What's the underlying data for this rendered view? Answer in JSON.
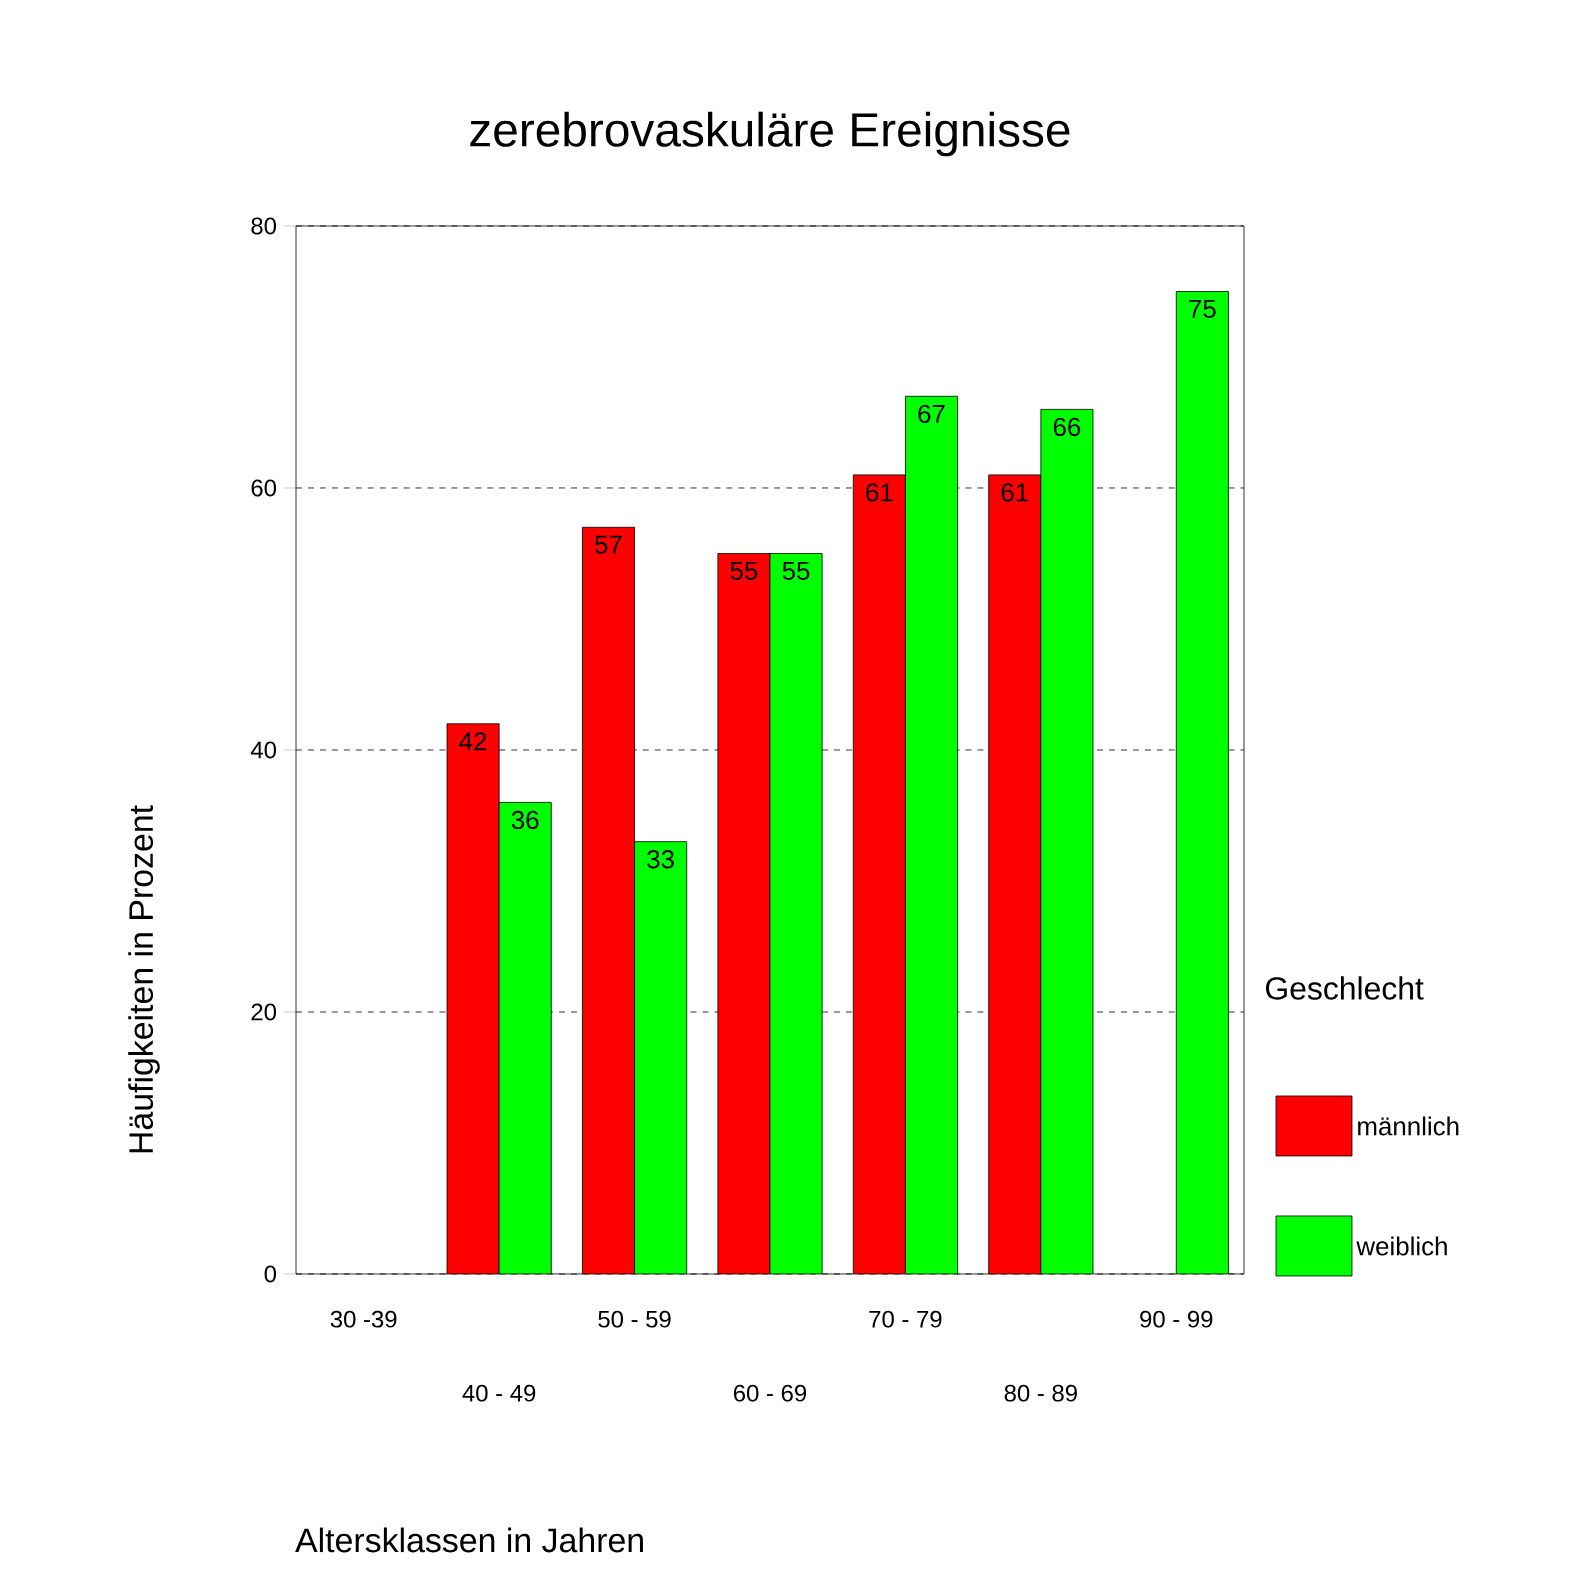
{
  "chart_data": {
    "type": "bar",
    "title": "zerebrovaskuläre Ereignisse",
    "xlabel": "Altersklassen in Jahren",
    "ylabel": "Häufigkeiten in Prozent",
    "legend_title": "Geschlecht",
    "categories": [
      "30 -39",
      "40 - 49",
      "50 - 59",
      "60 - 69",
      "70 - 79",
      "80 - 89",
      "90 - 99"
    ],
    "series": [
      {
        "name": "männlich",
        "color": "#ff0000",
        "values": [
          null,
          42,
          57,
          55,
          61,
          61,
          null
        ]
      },
      {
        "name": "weiblich",
        "color": "#00ff00",
        "values": [
          null,
          36,
          33,
          55,
          67,
          66,
          75
        ]
      }
    ],
    "ylim": [
      0,
      80
    ],
    "yticks": [
      0,
      20,
      40,
      60,
      80
    ],
    "grid": "y",
    "legend": "right",
    "data_labels": true
  }
}
